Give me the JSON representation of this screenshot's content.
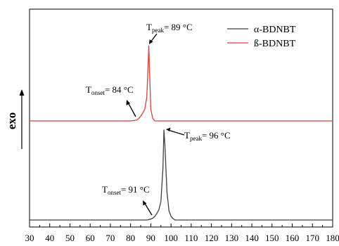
{
  "chart_data": {
    "type": "line",
    "title": "",
    "xlabel": "",
    "ylabel": "exo",
    "xlim": [
      30,
      180
    ],
    "xticks": [
      30,
      40,
      50,
      60,
      70,
      80,
      90,
      100,
      110,
      120,
      130,
      140,
      150,
      160,
      170,
      180
    ],
    "yticks": [],
    "grid": false,
    "legend_position": "top-right",
    "series": [
      {
        "name": "α-BDNBT",
        "color": "#404040",
        "x": [
          30,
          80,
          88,
          90,
          91,
          92,
          93,
          94,
          95,
          96,
          96.5,
          97,
          97.5,
          98,
          99,
          100,
          101,
          102,
          105,
          120,
          150,
          180
        ],
        "y": [
          0.0,
          0.0,
          0.0,
          0.01,
          0.02,
          0.04,
          0.07,
          0.11,
          0.2,
          0.55,
          0.97,
          0.8,
          0.55,
          0.3,
          0.1,
          0.04,
          0.015,
          0.0,
          0.0,
          0.0,
          0.0,
          0.0
        ]
      },
      {
        "name": "ß-BDNBT",
        "color": "#e03c3c",
        "x": [
          30,
          80,
          83,
          84,
          85,
          86,
          87,
          88,
          88.5,
          89,
          89.5,
          90,
          91,
          92,
          95,
          120,
          150,
          180
        ],
        "y": [
          0.0,
          0.0,
          0.01,
          0.03,
          0.06,
          0.1,
          0.15,
          0.3,
          0.6,
          0.97,
          0.55,
          0.15,
          0.03,
          0.0,
          0.0,
          0.0,
          0.0,
          0.0
        ]
      }
    ],
    "annotations": [
      {
        "id": "beta-peak",
        "main": "T",
        "sub": "peak",
        "rest": "= 89 °C",
        "x": 89,
        "series": "ß-BDNBT"
      },
      {
        "id": "beta-onset",
        "main": "T",
        "sub": "onset",
        "rest": "= 84 °C",
        "x": 84,
        "series": "ß-BDNBT"
      },
      {
        "id": "alpha-peak",
        "main": "T",
        "sub": "peak",
        "rest": "= 96 °C",
        "x": 96,
        "series": "α-BDNBT"
      },
      {
        "id": "alpha-onset",
        "main": "T",
        "sub": "onset",
        "rest": "= 91 °C",
        "x": 91,
        "series": "α-BDNBT"
      }
    ]
  }
}
